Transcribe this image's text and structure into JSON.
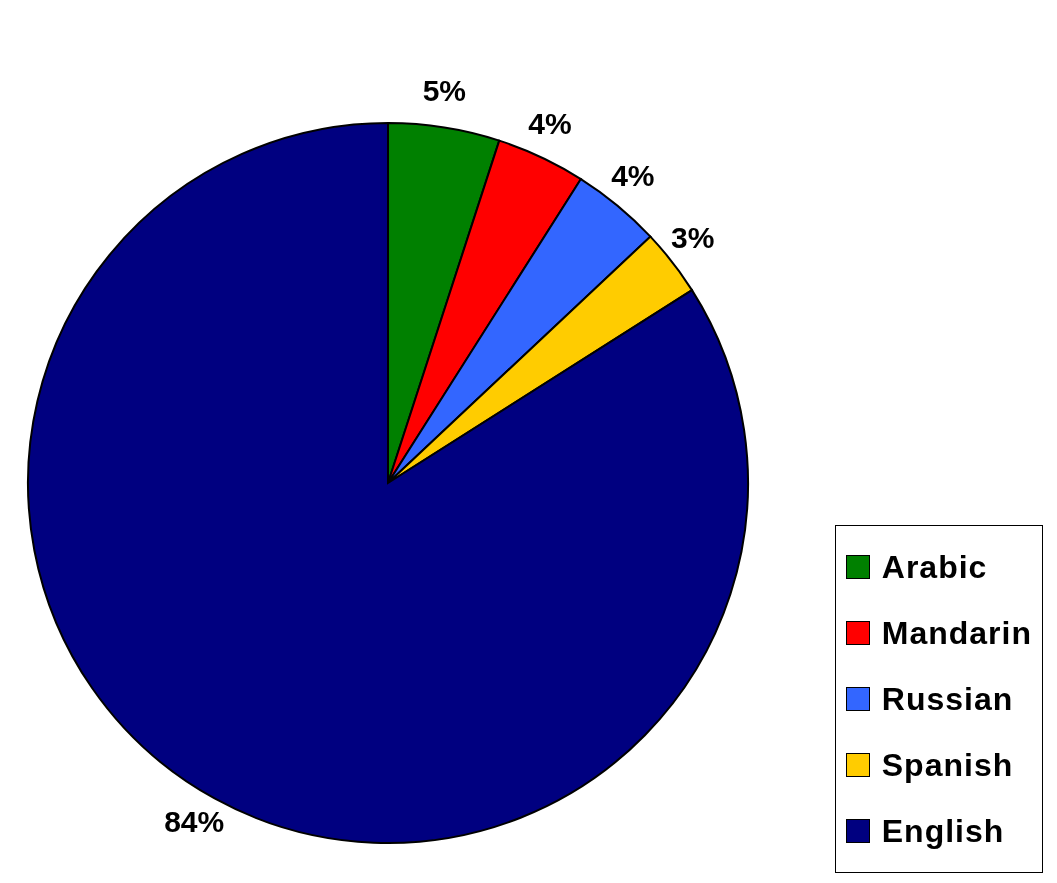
{
  "chart_data": {
    "type": "pie",
    "categories": [
      "Arabic",
      "Mandarin",
      "Russian",
      "Spanish",
      "English"
    ],
    "values": [
      5,
      4,
      4,
      3,
      84
    ],
    "colors": [
      "#008000",
      "#ff0000",
      "#3366ff",
      "#ffcc00",
      "#000080"
    ],
    "value_labels": [
      "5%",
      "4%",
      "4%",
      "3%",
      "84%"
    ],
    "legend": "bottom right"
  }
}
